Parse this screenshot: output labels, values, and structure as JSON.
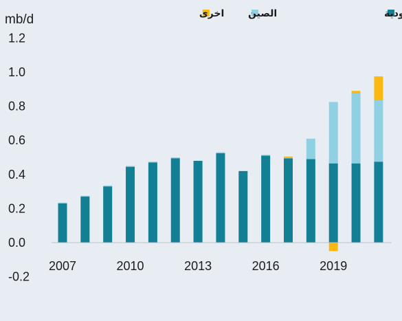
{
  "chart_data": {
    "type": "bar",
    "stacked": true,
    "y_unit": "mb/d",
    "ylim": [
      -0.2,
      1.2
    ],
    "yticks": [
      "1.2",
      "1.0",
      "0.8",
      "0.6",
      "0.4",
      "0.2",
      "0.0",
      "-0.2"
    ],
    "ytick_values": [
      1.2,
      1.0,
      0.8,
      0.6,
      0.4,
      0.2,
      0.0,
      -0.2
    ],
    "x": [
      2007,
      2008,
      2009,
      2010,
      2011,
      2012,
      2013,
      2014,
      2015,
      2016,
      2017,
      2018,
      2019,
      2020,
      2021
    ],
    "xtick_labels": [
      "2007",
      "2010",
      "2013",
      "2016",
      "2019"
    ],
    "xtick_years": [
      2007,
      2010,
      2013,
      2016,
      2019
    ],
    "grid": false,
    "legend_position": "top-right",
    "series": [
      {
        "name": "المملكة العربية السعودية",
        "color": "#137f94",
        "values": [
          0.23,
          0.27,
          0.33,
          0.445,
          0.47,
          0.495,
          0.48,
          0.525,
          0.42,
          0.51,
          0.495,
          0.49,
          0.465,
          0.465,
          0.475
        ]
      },
      {
        "name": "الصين",
        "color": "#8fd0e3",
        "values": [
          0.005,
          0.005,
          0.005,
          0.005,
          0.005,
          0.005,
          0.0,
          0.005,
          0.0,
          0.005,
          0.005,
          0.12,
          0.36,
          0.41,
          0.36
        ]
      },
      {
        "name": "اخرى",
        "color": "#fbb811",
        "values": [
          0.0,
          0.0,
          0.0,
          0.0,
          0.0,
          0.0,
          0.0,
          0.0,
          0.0,
          0.0,
          0.005,
          0.0,
          -0.05,
          0.015,
          0.14
        ]
      }
    ]
  }
}
